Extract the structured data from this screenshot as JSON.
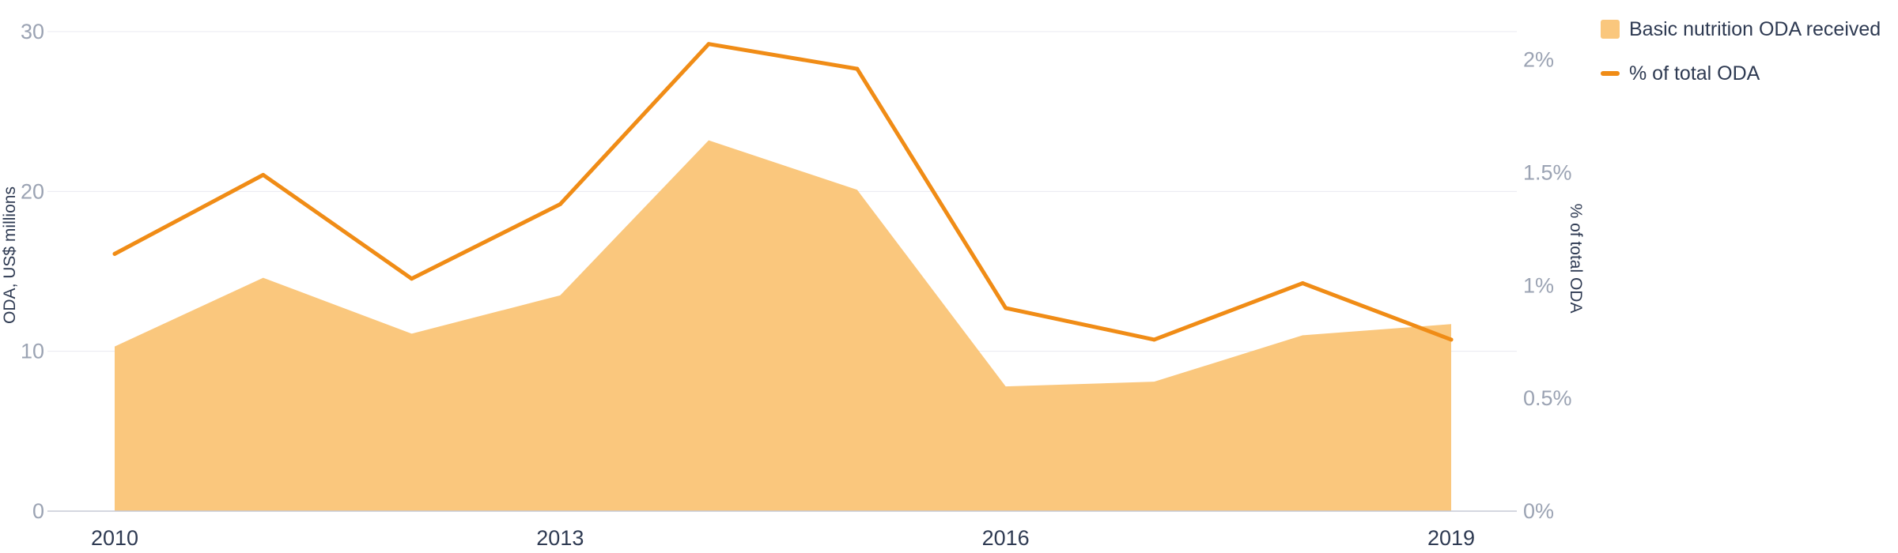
{
  "chart_data": {
    "type": "area",
    "title": "",
    "x": [
      2010,
      2011,
      2012,
      2013,
      2014,
      2015,
      2016,
      2017,
      2018,
      2019
    ],
    "x_tick_labels": [
      "2010",
      "2013",
      "2016",
      "2019"
    ],
    "series": [
      {
        "name": "Basic nutrition ODA received",
        "type": "area",
        "axis": "left",
        "values": [
          10.3,
          14.6,
          11.1,
          13.5,
          23.2,
          20.1,
          7.8,
          8.1,
          11.0,
          11.7
        ],
        "color": "#fac77d"
      },
      {
        "name": "% of total ODA",
        "type": "line",
        "axis": "right",
        "values": [
          1.14,
          1.49,
          1.03,
          1.36,
          2.07,
          1.96,
          0.9,
          0.76,
          1.01,
          0.76
        ],
        "color": "#f08c16"
      }
    ],
    "y_left": {
      "label": "ODA, US$ millions",
      "range": [
        0,
        30
      ],
      "ticks": [
        0,
        10,
        20,
        30
      ],
      "tick_labels": [
        "0",
        "10",
        "20",
        "30"
      ]
    },
    "y_right": {
      "label": "% of total ODA",
      "range": [
        0,
        2.125
      ],
      "ticks": [
        0,
        0.5,
        1,
        1.5,
        2
      ],
      "tick_labels": [
        "0%",
        "0.5%",
        "1%",
        "1.5%",
        "2%"
      ]
    },
    "grid": "horizontal",
    "legend_position": "top-right"
  },
  "colors": {
    "grid": "#e8eaf0",
    "axis_line": "#c5cad6",
    "tick_text": "#9ba3b3",
    "label_text": "#2e3a52"
  }
}
